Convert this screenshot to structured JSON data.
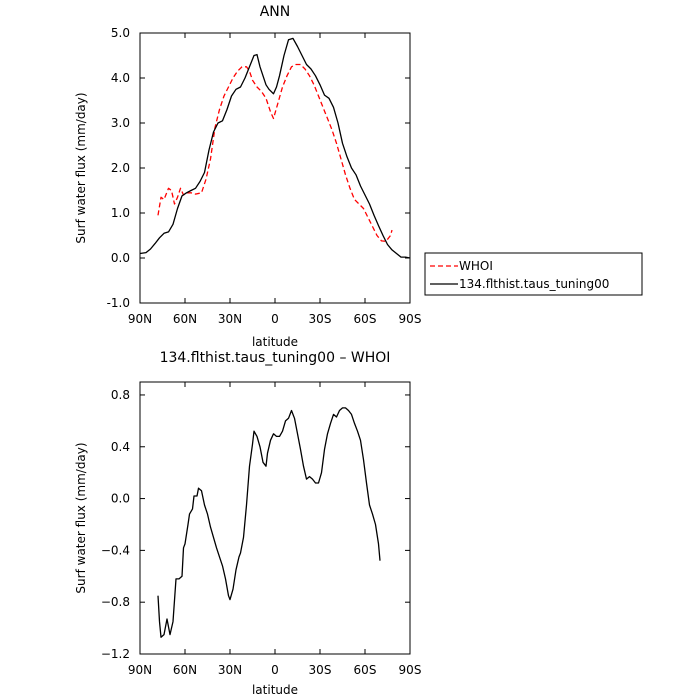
{
  "chart_data": [
    {
      "type": "line",
      "title": "ANN",
      "xlabel": "latitude",
      "ylabel": "Surf water flux (mm/day)",
      "xlim": [
        90,
        -90
      ],
      "ylim": [
        -1.0,
        5.0
      ],
      "x_ticks": [
        90,
        60,
        30,
        0,
        -30,
        -60,
        -90
      ],
      "x_tick_labels": [
        "90N",
        "60N",
        "30N",
        "0",
        "30S",
        "60S",
        "90S"
      ],
      "y_ticks": [
        -1.0,
        0.0,
        1.0,
        2.0,
        3.0,
        4.0,
        5.0
      ],
      "y_tick_labels": [
        "-1.0",
        "0.0",
        "1.0",
        "2.0",
        "3.0",
        "4.0",
        "5.0"
      ],
      "grid": false,
      "legend": "outside-right",
      "series": [
        {
          "name": "WHOI",
          "color": "#ff0000",
          "dash": "dashed",
          "points": [
            [
              78,
              0.95
            ],
            [
              76,
              1.35
            ],
            [
              74,
              1.3
            ],
            [
              71,
              1.55
            ],
            [
              69,
              1.5
            ],
            [
              67,
              1.2
            ],
            [
              65,
              1.35
            ],
            [
              63,
              1.55
            ],
            [
              61,
              1.4
            ],
            [
              59,
              1.45
            ],
            [
              56,
              1.45
            ],
            [
              53,
              1.42
            ],
            [
              49,
              1.45
            ],
            [
              46,
              1.75
            ],
            [
              43,
              2.2
            ],
            [
              40,
              2.9
            ],
            [
              37,
              3.3
            ],
            [
              34,
              3.6
            ],
            [
              31,
              3.8
            ],
            [
              28,
              4.0
            ],
            [
              25,
              4.15
            ],
            [
              22,
              4.25
            ],
            [
              19,
              4.25
            ],
            [
              17,
              4.15
            ],
            [
              15,
              3.95
            ],
            [
              12,
              3.8
            ],
            [
              9,
              3.7
            ],
            [
              6,
              3.55
            ],
            [
              3,
              3.25
            ],
            [
              1,
              3.1
            ],
            [
              -2,
              3.45
            ],
            [
              -5,
              3.8
            ],
            [
              -8,
              4.05
            ],
            [
              -11,
              4.25
            ],
            [
              -14,
              4.3
            ],
            [
              -17,
              4.3
            ],
            [
              -20,
              4.2
            ],
            [
              -23,
              4.05
            ],
            [
              -26,
              3.85
            ],
            [
              -29,
              3.6
            ],
            [
              -32,
              3.35
            ],
            [
              -35,
              3.1
            ],
            [
              -38,
              2.85
            ],
            [
              -41,
              2.55
            ],
            [
              -44,
              2.2
            ],
            [
              -47,
              1.85
            ],
            [
              -50,
              1.55
            ],
            [
              -53,
              1.3
            ],
            [
              -56,
              1.2
            ],
            [
              -59,
              1.1
            ],
            [
              -62,
              0.9
            ],
            [
              -65,
              0.7
            ],
            [
              -68,
              0.5
            ],
            [
              -71,
              0.38
            ],
            [
              -74,
              0.37
            ],
            [
              -77,
              0.5
            ],
            [
              -78,
              0.62
            ]
          ]
        },
        {
          "name": "134.flthist.taus_tuning00",
          "color": "#000000",
          "dash": "solid",
          "points": [
            [
              90,
              0.1
            ],
            [
              86,
              0.12
            ],
            [
              83,
              0.2
            ],
            [
              80,
              0.32
            ],
            [
              77,
              0.45
            ],
            [
              74,
              0.55
            ],
            [
              71,
              0.58
            ],
            [
              68,
              0.75
            ],
            [
              65,
              1.1
            ],
            [
              62,
              1.38
            ],
            [
              59,
              1.45
            ],
            [
              56,
              1.5
            ],
            [
              53,
              1.55
            ],
            [
              50,
              1.7
            ],
            [
              47,
              1.9
            ],
            [
              44,
              2.4
            ],
            [
              41,
              2.8
            ],
            [
              38,
              3.0
            ],
            [
              35,
              3.05
            ],
            [
              32,
              3.3
            ],
            [
              29,
              3.6
            ],
            [
              26,
              3.75
            ],
            [
              23,
              3.8
            ],
            [
              20,
              4.0
            ],
            [
              17,
              4.25
            ],
            [
              14,
              4.5
            ],
            [
              12,
              4.52
            ],
            [
              10,
              4.25
            ],
            [
              8,
              4.05
            ],
            [
              6,
              3.85
            ],
            [
              4,
              3.75
            ],
            [
              1,
              3.65
            ],
            [
              -1,
              3.8
            ],
            [
              -3,
              4.05
            ],
            [
              -6,
              4.5
            ],
            [
              -9,
              4.85
            ],
            [
              -12,
              4.88
            ],
            [
              -15,
              4.7
            ],
            [
              -18,
              4.5
            ],
            [
              -21,
              4.3
            ],
            [
              -24,
              4.2
            ],
            [
              -27,
              4.05
            ],
            [
              -30,
              3.85
            ],
            [
              -33,
              3.62
            ],
            [
              -36,
              3.55
            ],
            [
              -39,
              3.35
            ],
            [
              -42,
              3.0
            ],
            [
              -45,
              2.55
            ],
            [
              -48,
              2.25
            ],
            [
              -51,
              2.0
            ],
            [
              -54,
              1.85
            ],
            [
              -57,
              1.6
            ],
            [
              -60,
              1.4
            ],
            [
              -63,
              1.2
            ],
            [
              -66,
              0.95
            ],
            [
              -69,
              0.72
            ],
            [
              -72,
              0.5
            ],
            [
              -75,
              0.3
            ],
            [
              -78,
              0.18
            ],
            [
              -81,
              0.1
            ],
            [
              -84,
              0.02
            ],
            [
              -87,
              0.02
            ],
            [
              -90,
              0.0
            ]
          ]
        }
      ]
    },
    {
      "type": "line",
      "title": "134.flthist.taus_tuning00 – WHOI",
      "xlabel": "latitude",
      "ylabel": "Surf water flux (mm/day)",
      "xlim": [
        90,
        -90
      ],
      "ylim": [
        -1.2,
        0.9
      ],
      "x_ticks": [
        90,
        60,
        30,
        0,
        -30,
        -60,
        -90
      ],
      "x_tick_labels": [
        "90N",
        "60N",
        "30N",
        "0",
        "30S",
        "60S",
        "90S"
      ],
      "y_ticks": [
        -1.2,
        -0.8,
        -0.4,
        0.0,
        0.4,
        0.8
      ],
      "y_tick_labels": [
        "−1.2",
        "−0.8",
        "−0.4",
        "0.0",
        "0.4",
        "0.8"
      ],
      "grid": false,
      "series": [
        {
          "color": "#000000",
          "dash": "solid",
          "points": [
            [
              78,
              -0.75
            ],
            [
              77,
              -0.95
            ],
            [
              76,
              -1.07
            ],
            [
              74,
              -1.05
            ],
            [
              72,
              -0.93
            ],
            [
              70,
              -1.05
            ],
            [
              68,
              -0.95
            ],
            [
              66,
              -0.62
            ],
            [
              64,
              -0.62
            ],
            [
              62,
              -0.6
            ],
            [
              61,
              -0.38
            ],
            [
              60,
              -0.35
            ],
            [
              58,
              -0.2
            ],
            [
              57,
              -0.12
            ],
            [
              55,
              -0.08
            ],
            [
              54,
              0.02
            ],
            [
              52,
              0.02
            ],
            [
              51,
              0.08
            ],
            [
              49,
              0.06
            ],
            [
              47,
              -0.05
            ],
            [
              45,
              -0.12
            ],
            [
              43,
              -0.22
            ],
            [
              41,
              -0.3
            ],
            [
              39,
              -0.38
            ],
            [
              37,
              -0.45
            ],
            [
              35,
              -0.52
            ],
            [
              33,
              -0.62
            ],
            [
              31,
              -0.75
            ],
            [
              30,
              -0.78
            ],
            [
              28,
              -0.7
            ],
            [
              26,
              -0.55
            ],
            [
              24,
              -0.45
            ],
            [
              23,
              -0.42
            ],
            [
              21,
              -0.3
            ],
            [
              19,
              -0.05
            ],
            [
              17,
              0.25
            ],
            [
              15,
              0.42
            ],
            [
              14,
              0.52
            ],
            [
              12,
              0.48
            ],
            [
              10,
              0.4
            ],
            [
              8,
              0.28
            ],
            [
              6,
              0.25
            ],
            [
              5,
              0.35
            ],
            [
              3,
              0.45
            ],
            [
              1,
              0.5
            ],
            [
              -1,
              0.48
            ],
            [
              -3,
              0.48
            ],
            [
              -5,
              0.52
            ],
            [
              -7,
              0.6
            ],
            [
              -9,
              0.62
            ],
            [
              -11,
              0.68
            ],
            [
              -13,
              0.62
            ],
            [
              -15,
              0.5
            ],
            [
              -17,
              0.38
            ],
            [
              -19,
              0.25
            ],
            [
              -21,
              0.15
            ],
            [
              -23,
              0.17
            ],
            [
              -25,
              0.15
            ],
            [
              -27,
              0.12
            ],
            [
              -29,
              0.12
            ],
            [
              -31,
              0.2
            ],
            [
              -33,
              0.38
            ],
            [
              -35,
              0.5
            ],
            [
              -37,
              0.58
            ],
            [
              -39,
              0.65
            ],
            [
              -41,
              0.63
            ],
            [
              -43,
              0.68
            ],
            [
              -45,
              0.7
            ],
            [
              -47,
              0.7
            ],
            [
              -49,
              0.68
            ],
            [
              -51,
              0.65
            ],
            [
              -53,
              0.58
            ],
            [
              -55,
              0.52
            ],
            [
              -57,
              0.45
            ],
            [
              -59,
              0.3
            ],
            [
              -61,
              0.12
            ],
            [
              -63,
              -0.05
            ],
            [
              -65,
              -0.12
            ],
            [
              -67,
              -0.2
            ],
            [
              -69,
              -0.35
            ],
            [
              -70,
              -0.48
            ]
          ]
        }
      ]
    }
  ]
}
